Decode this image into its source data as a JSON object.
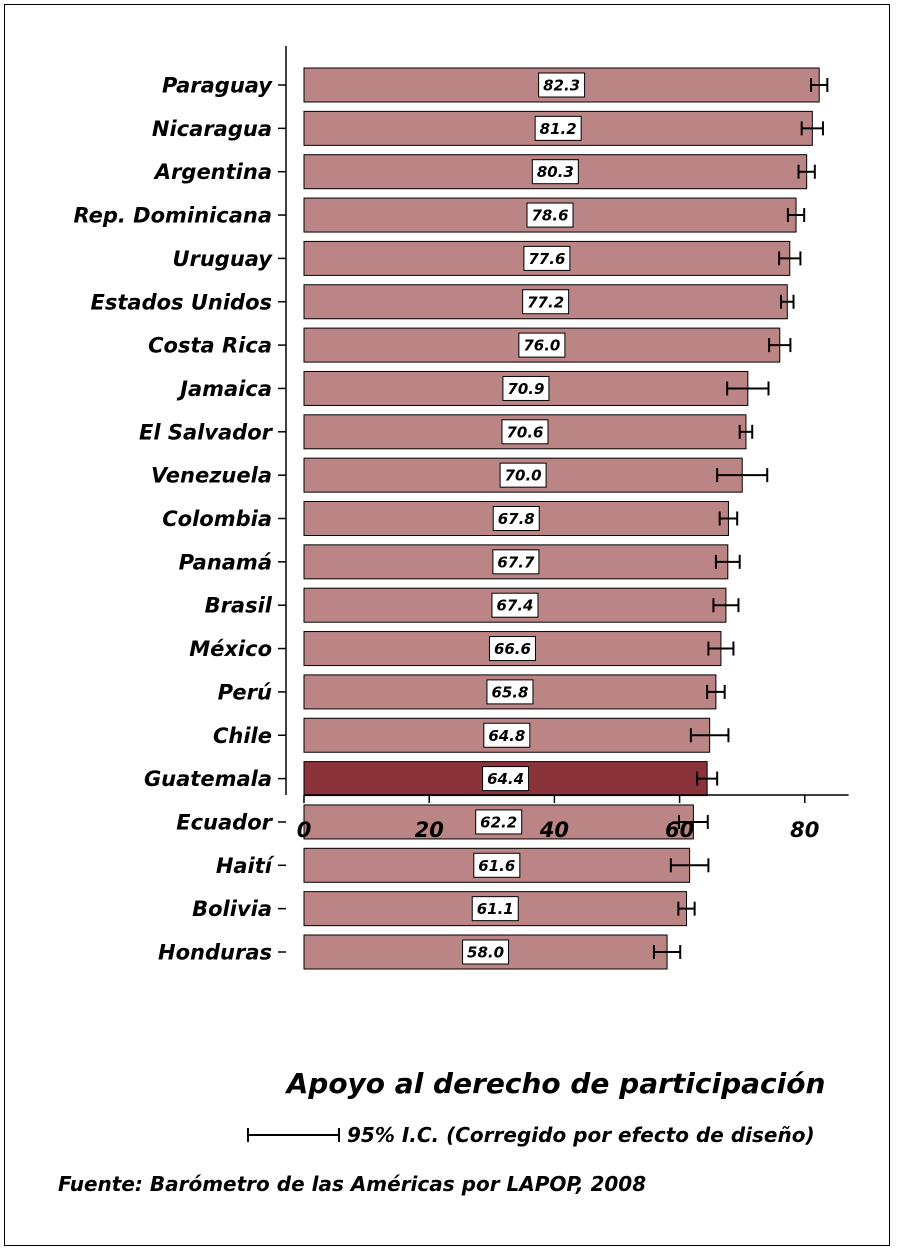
{
  "chart_data": {
    "type": "bar",
    "orientation": "horizontal",
    "categories": [
      "Paraguay",
      "Nicaragua",
      "Argentina",
      "Rep. Dominicana",
      "Uruguay",
      "Estados Unidos",
      "Costa Rica",
      "Jamaica",
      "El Salvador",
      "Venezuela",
      "Colombia",
      "Panamá",
      "Brasil",
      "México",
      "Perú",
      "Chile",
      "Guatemala",
      "Ecuador",
      "Haití",
      "Bolivia",
      "Honduras"
    ],
    "values": [
      82.3,
      81.2,
      80.3,
      78.6,
      77.6,
      77.2,
      76.0,
      70.9,
      70.6,
      70.0,
      67.8,
      67.7,
      67.4,
      66.6,
      65.8,
      64.8,
      64.4,
      62.2,
      61.6,
      61.1,
      58.0
    ],
    "value_labels": [
      "82.3",
      "81.2",
      "80.3",
      "78.6",
      "77.6",
      "77.2",
      "76.0",
      "70.9",
      "70.6",
      "70.0",
      "67.8",
      "67.7",
      "67.4",
      "66.6",
      "65.8",
      "64.8",
      "64.4",
      "62.2",
      "61.6",
      "61.1",
      "58.0"
    ],
    "ci_low": [
      81.0,
      79.5,
      79.0,
      77.3,
      75.9,
      76.2,
      74.3,
      67.6,
      69.6,
      66.0,
      66.4,
      65.8,
      65.4,
      64.6,
      64.4,
      61.8,
      62.8,
      59.9,
      58.6,
      59.8,
      55.9
    ],
    "ci_high": [
      83.6,
      82.9,
      81.6,
      79.9,
      79.3,
      78.2,
      77.7,
      74.2,
      71.6,
      74.0,
      69.2,
      69.6,
      69.4,
      68.6,
      67.2,
      67.8,
      66.0,
      64.5,
      64.6,
      62.4,
      60.1
    ],
    "highlight": "Guatemala",
    "xlabel": "Apoyo al derecho de participación",
    "xlim": [
      0,
      87
    ],
    "xticks": [
      "0",
      "20",
      "40",
      "60",
      "80"
    ],
    "legend": {
      "text": "95% I.C. (Corregido por efecto de diseño)",
      "placement": "bottom"
    },
    "source": "Fuente: Barómetro de las Américas por LAPOP, 2008",
    "colors": {
      "bar": "#bc8585",
      "highlight": "#8b333b",
      "outline": "#000000"
    }
  }
}
